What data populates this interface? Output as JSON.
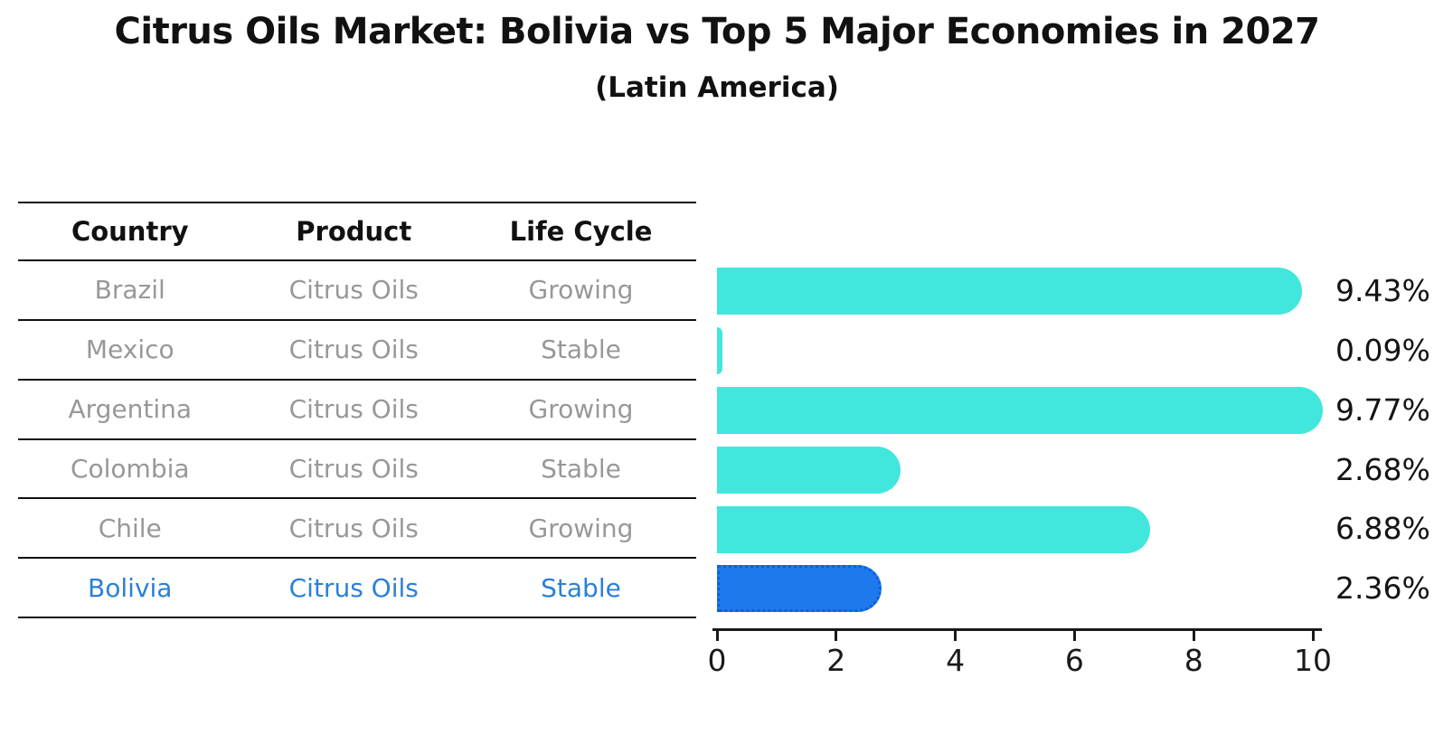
{
  "title": "Citrus Oils Market: Bolivia vs Top 5 Major Economies in 2027",
  "subtitle": "(Latin America)",
  "table": {
    "headers": [
      "Country",
      "Product",
      "Life Cycle"
    ],
    "rows": [
      {
        "country": "Brazil",
        "product": "Citrus Oils",
        "life_cycle": "Growing",
        "highlight": false
      },
      {
        "country": "Mexico",
        "product": "Citrus Oils",
        "life_cycle": "Stable",
        "highlight": false
      },
      {
        "country": "Argentina",
        "product": "Citrus Oils",
        "life_cycle": "Growing",
        "highlight": false
      },
      {
        "country": "Colombia",
        "product": "Citrus Oils",
        "life_cycle": "Stable",
        "highlight": false
      },
      {
        "country": "Chile",
        "product": "Citrus Oils",
        "life_cycle": "Growing",
        "highlight": false
      },
      {
        "country": "Bolivia",
        "product": "Citrus Oils",
        "life_cycle": "Stable",
        "highlight": true
      }
    ]
  },
  "chart_data": {
    "type": "bar",
    "orientation": "horizontal",
    "title": "Citrus Oils Market: Bolivia vs Top 5 Major Economies in 2027",
    "subtitle": "(Latin America)",
    "categories": [
      "Brazil",
      "Mexico",
      "Argentina",
      "Colombia",
      "Chile",
      "Bolivia"
    ],
    "values": [
      9.43,
      0.09,
      9.77,
      2.68,
      6.88,
      2.36
    ],
    "value_labels": [
      "9.43%",
      "0.09%",
      "9.77%",
      "2.68%",
      "6.88%",
      "2.36%"
    ],
    "x_ticks": [
      "0",
      "2",
      "4",
      "6",
      "8",
      "10"
    ],
    "xlim": [
      0,
      10
    ],
    "xlabel": "",
    "ylabel": "",
    "grid": false,
    "legend": false,
    "highlight_index": 5
  },
  "colors": {
    "bar": "#41e7dc",
    "highlight_bar": "#1e79ec",
    "highlight_border": "#0e5fd8",
    "highlight_text": "#2b80d8",
    "table_text": "#98989a",
    "heading_text": "#111111",
    "value_text": "#141414",
    "axis": "#1a1a1a"
  }
}
